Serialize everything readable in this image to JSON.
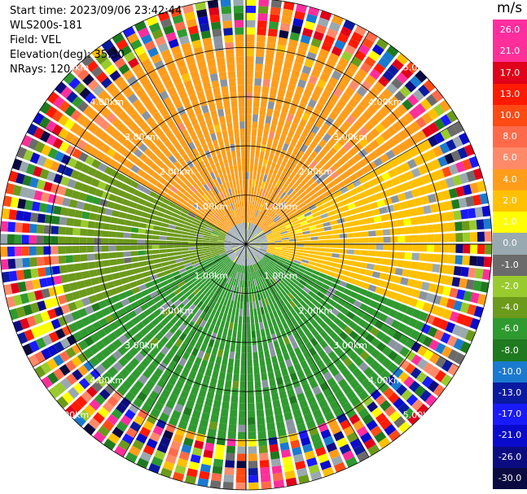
{
  "header": {
    "start_time": "Start time: 2023/09/06 23:42:44",
    "instrument": "WLS200s-181",
    "field": "Field: VEL",
    "elevation": "Elevation(deg): 35.30",
    "nrays": "NRays: 120"
  },
  "colorbar": {
    "unit": "m/s",
    "ticks": [
      "26.0",
      "21.0",
      "17.0",
      "13.0",
      "10.0",
      "8.0",
      "6.0",
      "4.0",
      "2.0",
      "1.0",
      "0.0",
      "-1.0",
      "-2.0",
      "-4.0",
      "-6.0",
      "-8.0",
      "-10.0",
      "-13.0",
      "-17.0",
      "-21.0",
      "-26.0",
      "-30.0"
    ],
    "colors": [
      "#ff2d9e",
      "#ff2f9a",
      "#e0001a",
      "#ff1a00",
      "#ff4a14",
      "#ff6b4a",
      "#ff8a6a",
      "#ff9d1a",
      "#ffc000",
      "#ffff00",
      "#9aa8b0",
      "#6b6b6b",
      "#9acb2e",
      "#6c9a1a",
      "#2f9a2f",
      "#1f7a1f",
      "#1a7ad0",
      "#0a1aa0",
      "#1a1aff",
      "#0a0acc",
      "#0c0c80",
      "#0a0a40"
    ]
  },
  "chart_data": {
    "type": "ppi",
    "field": "VEL",
    "units": "m/s",
    "nrays": 120,
    "range_rings_km": [
      1.0,
      2.0,
      3.0,
      4.0,
      5.0
    ],
    "range_ring_labels": [
      "1.00km",
      "2.00km",
      "3.00km",
      "4.00km",
      "5.00km"
    ],
    "max_range_km": 5.0,
    "spoke_interval_deg": 30,
    "sectors": [
      {
        "azimuth_from_deg": 300,
        "azimuth_to_deg": 60,
        "range_from_km": 0.5,
        "range_to_km": 4.2,
        "velocity_ms": 5.0
      },
      {
        "azimuth_from_deg": 60,
        "azimuth_to_deg": 110,
        "range_from_km": 0.5,
        "range_to_km": 4.2,
        "velocity_ms": 2.0
      },
      {
        "azimuth_from_deg": 110,
        "azimuth_to_deg": 250,
        "range_from_km": 0.5,
        "range_to_km": 4.0,
        "velocity_ms": -5.0
      },
      {
        "azimuth_from_deg": 250,
        "azimuth_to_deg": 300,
        "range_from_km": 0.5,
        "range_to_km": 3.8,
        "velocity_ms": -2.5
      },
      {
        "azimuth_from_deg": 0,
        "azimuth_to_deg": 360,
        "range_from_km": 0.0,
        "range_to_km": 0.5,
        "velocity_ms": 0.0
      },
      {
        "azimuth_from_deg": 0,
        "azimuth_to_deg": 360,
        "range_from_km": 4.2,
        "range_to_km": 5.0,
        "velocity_ms": "noise"
      }
    ]
  }
}
